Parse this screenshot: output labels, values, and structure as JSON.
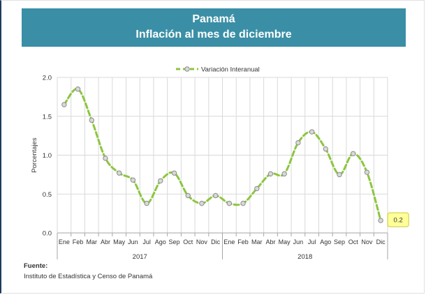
{
  "header": {
    "title": "Panamá",
    "subtitle": "Inflación al mes de diciembre"
  },
  "source": {
    "label": "Fuente:",
    "text": "Instituto de Estadística y Censo de Panamá"
  },
  "chart_data": {
    "type": "line",
    "ylabel": "Porcentajes",
    "ylim": [
      0,
      2.0
    ],
    "yticks": [
      "0.0",
      "0.5",
      "1.0",
      "1.5",
      "2.0"
    ],
    "grid": true,
    "legend_position": "top-center",
    "colors": {
      "line": "#8cc63f",
      "marker_fill": "#d9d9d9",
      "marker_stroke": "#8c8c8c",
      "callout_fill": "#ffff99"
    },
    "years": [
      "2017",
      "2018"
    ],
    "categories": [
      "Ene",
      "Feb",
      "Mar",
      "Abr",
      "May",
      "Jun",
      "Jul",
      "Ago",
      "Sep",
      "Oct",
      "Nov",
      "Dic",
      "Ene",
      "Feb",
      "Mar",
      "Abr",
      "May",
      "Jun",
      "Jul",
      "Ago",
      "Sep",
      "Oct",
      "Nov",
      "Dic"
    ],
    "series": [
      {
        "name": "Variación Interanual",
        "values": [
          1.65,
          1.85,
          1.45,
          0.96,
          0.77,
          0.68,
          0.38,
          0.67,
          0.77,
          0.48,
          0.38,
          0.48,
          0.38,
          0.38,
          0.57,
          0.76,
          0.76,
          1.16,
          1.3,
          1.08,
          0.75,
          1.02,
          0.78,
          0.16
        ]
      }
    ],
    "annotation": {
      "label": "0.2"
    }
  }
}
